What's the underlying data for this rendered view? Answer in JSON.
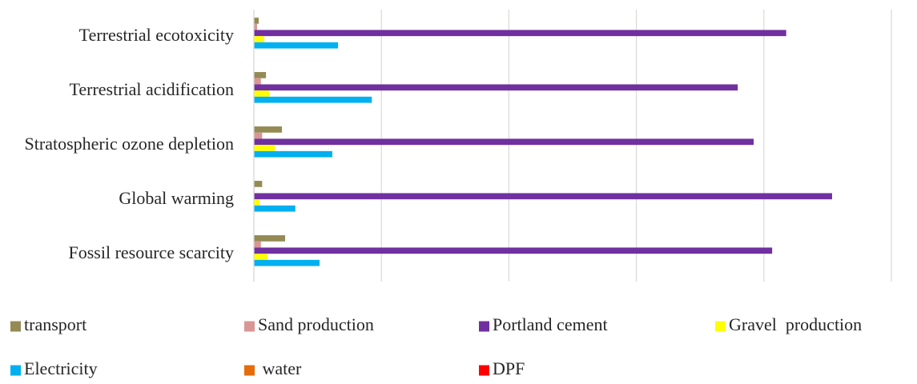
{
  "chart_data": {
    "type": "hbar",
    "categories": [
      "Terrestrial ecotoxicity",
      "Terrestrial acidification",
      "Stratospheric ozone depletion",
      "Global warming",
      "Fossil resource scarcity"
    ],
    "series": [
      {
        "name": "transport",
        "color": "#948a54",
        "values": [
          0.75,
          1.9,
          4.4,
          1.3,
          4.9
        ]
      },
      {
        "name": "Sand production",
        "color": "#da9694",
        "values": [
          0.5,
          1.1,
          1.3,
          0.1,
          1.1
        ]
      },
      {
        "name": "Portland cement",
        "color": "#7030a0",
        "values": [
          83.5,
          75.9,
          78.4,
          90.7,
          81.3
        ]
      },
      {
        "name": "Gravel  production",
        "color": "#ffff00",
        "values": [
          1.6,
          2.4,
          3.3,
          0.9,
          2.1
        ]
      },
      {
        "name": "Electricity",
        "color": "#00b0f0",
        "values": [
          13.2,
          18.5,
          12.3,
          6.5,
          10.3
        ]
      },
      {
        "name": " water",
        "color": "#e46c0a",
        "values": [
          0,
          0,
          0,
          0,
          0
        ]
      },
      {
        "name": "DPF",
        "color": "#ff0000",
        "values": [
          0,
          0,
          0,
          0,
          0
        ]
      }
    ],
    "xlim": [
      0,
      100
    ],
    "xticks": [
      0,
      20,
      40,
      60,
      80,
      100
    ],
    "grid": true,
    "legend": "bottom"
  }
}
